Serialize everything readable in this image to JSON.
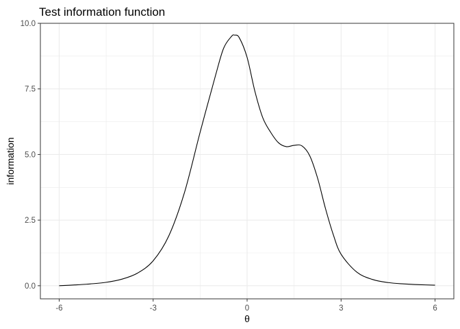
{
  "chart_data": {
    "type": "line",
    "title": "Test information function",
    "xlabel": "θ",
    "ylabel": "information",
    "xlim": [
      -6.6,
      6.6
    ],
    "ylim": [
      -0.5,
      10.0
    ],
    "x_ticks": [
      -6,
      -3,
      0,
      3,
      6
    ],
    "x_tick_labels": [
      "-6",
      "-3",
      "0",
      "3",
      "6"
    ],
    "y_ticks": [
      0.0,
      2.5,
      5.0,
      7.5,
      10.0
    ],
    "y_tick_labels": [
      "0.0",
      "2.5",
      "5.0",
      "7.5",
      "10.0"
    ],
    "grid": true,
    "series": [
      {
        "name": "information",
        "color": "#000000",
        "x": [
          -6.0,
          -5.5,
          -5.0,
          -4.5,
          -4.0,
          -3.5,
          -3.0,
          -2.5,
          -2.0,
          -1.5,
          -1.0,
          -0.75,
          -0.5,
          -0.4,
          -0.25,
          0.0,
          0.25,
          0.5,
          0.75,
          1.0,
          1.25,
          1.5,
          1.75,
          2.0,
          2.25,
          2.5,
          2.75,
          3.0,
          3.5,
          4.0,
          4.5,
          5.0,
          5.5,
          6.0
        ],
        "y": [
          0.0,
          0.03,
          0.07,
          0.13,
          0.25,
          0.48,
          0.95,
          1.9,
          3.55,
          5.85,
          8.05,
          9.05,
          9.5,
          9.55,
          9.45,
          8.7,
          7.4,
          6.4,
          5.85,
          5.45,
          5.3,
          5.35,
          5.33,
          4.95,
          4.1,
          2.95,
          1.95,
          1.2,
          0.52,
          0.24,
          0.12,
          0.07,
          0.04,
          0.02
        ]
      }
    ]
  }
}
